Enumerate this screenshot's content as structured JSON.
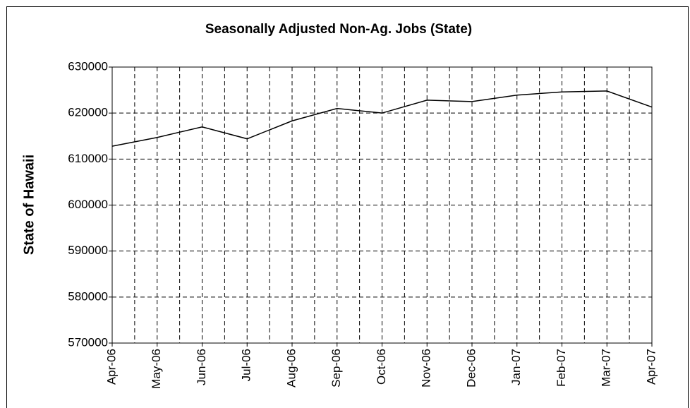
{
  "chart_data": {
    "type": "line",
    "title": "Seasonally Adjusted Non-Ag. Jobs (State)",
    "ylabel": "State of Hawaii",
    "categories": [
      "Apr-06",
      "May-06",
      "Jun-06",
      "Jul-06",
      "Aug-06",
      "Sep-06",
      "Oct-06",
      "Nov-06",
      "Dec-06",
      "Jan-07",
      "Feb-07",
      "Mar-07",
      "Apr-07"
    ],
    "series": [
      {
        "name": "State of Hawaii",
        "color": "#000000",
        "values": [
          612800,
          614700,
          617000,
          614400,
          618300,
          621000,
          620000,
          622800,
          622500,
          623900,
          624600,
          624800,
          621300
        ]
      }
    ],
    "ylim": [
      570000,
      630000
    ],
    "yticks": [
      570000,
      580000,
      590000,
      600000,
      610000,
      620000,
      630000
    ],
    "grid": true
  }
}
